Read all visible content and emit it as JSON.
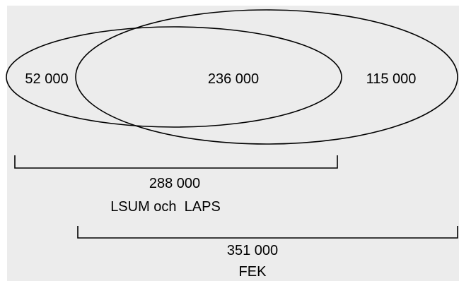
{
  "regions": {
    "left_only": "52 000",
    "overlap": "236 000",
    "right_only": "115 000"
  },
  "brackets": {
    "first": {
      "value": "288 000",
      "label": "LSUM och  LAPS"
    },
    "second": {
      "value": "351 000",
      "label": "FEK"
    }
  },
  "colors": {
    "background": "#ececec",
    "stroke": "#000000"
  }
}
